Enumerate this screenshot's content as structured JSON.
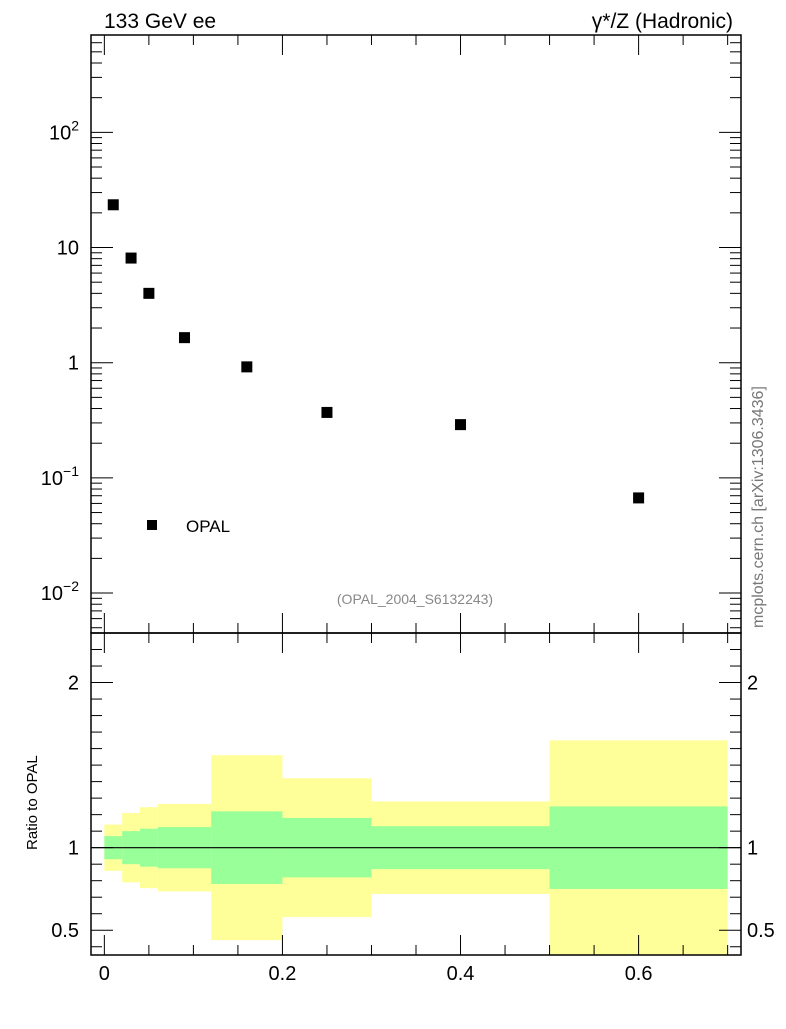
{
  "chart_data": [
    {
      "type": "scatter",
      "title_left": "133 GeV ee",
      "title_right": "γ*/Z (Hadronic)",
      "yscale": "log",
      "xlim": [
        -0.015,
        0.715
      ],
      "ylim": [
        0.0045,
        700
      ],
      "x": [
        0.01,
        0.03,
        0.05,
        0.09,
        0.16,
        0.25,
        0.4,
        0.6
      ],
      "series": [
        {
          "name": "OPAL",
          "values": [
            23.5,
            8.1,
            4.0,
            1.65,
            0.92,
            0.37,
            0.29,
            0.067
          ]
        }
      ],
      "y_tick_labels": [
        {
          "value": 0.01,
          "base": "10",
          "exp": "−2"
        },
        {
          "value": 0.1,
          "base": "10",
          "exp": "−1"
        },
        {
          "value": 1,
          "base": "1",
          "exp": ""
        },
        {
          "value": 10,
          "base": "10",
          "exp": ""
        },
        {
          "value": 100,
          "base": "10",
          "exp": "2"
        }
      ],
      "legend": {
        "label": "OPAL",
        "position": "bottom-left"
      },
      "annotation": "(OPAL_2004_S6132243)"
    },
    {
      "type": "area",
      "ylabel": "Ratio to OPAL",
      "xlim": [
        -0.015,
        0.715
      ],
      "ylim": [
        0.35,
        2.3
      ],
      "reference_line": 1,
      "bins": [
        {
          "lo": 0.0,
          "hi": 0.02,
          "inner": [
            0.93,
            1.07
          ],
          "outer": [
            0.86,
            1.14
          ]
        },
        {
          "lo": 0.02,
          "hi": 0.04,
          "inner": [
            0.9,
            1.1
          ],
          "outer": [
            0.79,
            1.21
          ]
        },
        {
          "lo": 0.04,
          "hi": 0.06,
          "inner": [
            0.885,
            1.115
          ],
          "outer": [
            0.755,
            1.245
          ]
        },
        {
          "lo": 0.06,
          "hi": 0.12,
          "inner": [
            0.875,
            1.125
          ],
          "outer": [
            0.735,
            1.265
          ]
        },
        {
          "lo": 0.12,
          "hi": 0.2,
          "inner": [
            0.78,
            1.22
          ],
          "outer": [
            0.44,
            1.56
          ]
        },
        {
          "lo": 0.2,
          "hi": 0.3,
          "inner": [
            0.82,
            1.18
          ],
          "outer": [
            0.58,
            1.42
          ]
        },
        {
          "lo": 0.3,
          "hi": 0.5,
          "inner": [
            0.87,
            1.13
          ],
          "outer": [
            0.72,
            1.28
          ]
        },
        {
          "lo": 0.5,
          "hi": 0.7,
          "inner": [
            0.75,
            1.25
          ],
          "outer": [
            0.35,
            1.65
          ]
        }
      ],
      "y_tick_labels": [
        "0.5",
        "1",
        "2"
      ],
      "x_tick_labels": [
        "0",
        "0.2",
        "0.4",
        "0.6"
      ],
      "colors": {
        "inner": "#99ff99",
        "outer": "#ffff99"
      }
    }
  ],
  "side_label": "mcplots.cern.ch [arXiv:1306.3436]"
}
